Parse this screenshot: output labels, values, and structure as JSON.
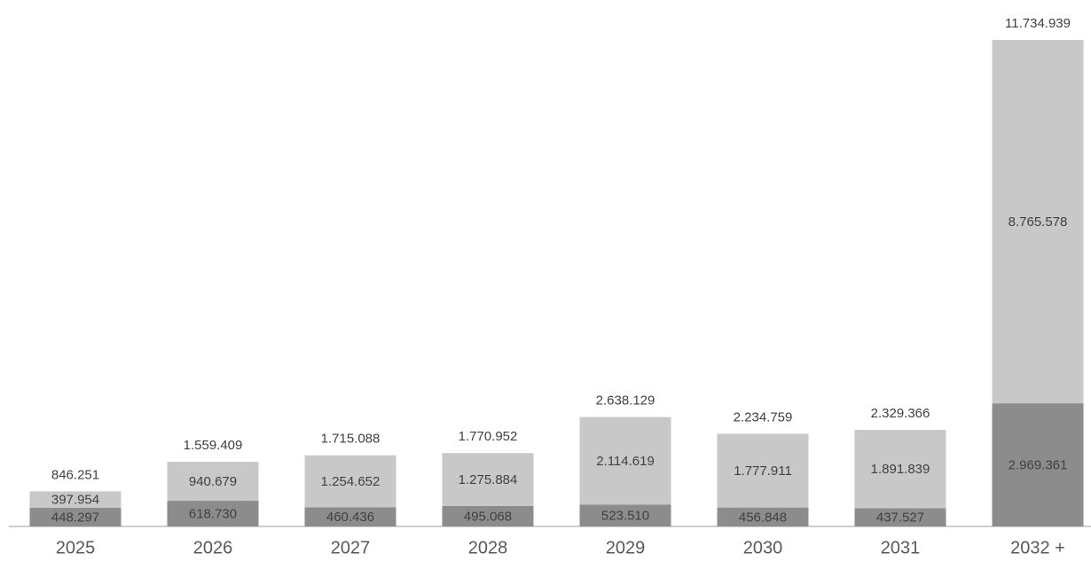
{
  "chart_data": {
    "type": "stacked-bar",
    "categories": [
      "2025",
      "2026",
      "2027",
      "2028",
      "2029",
      "2030",
      "2031",
      "2032 +"
    ],
    "series": [
      {
        "color": "#8c8c8c",
        "values": [
          448297,
          618730,
          460436,
          495068,
          523510,
          456848,
          437527,
          2969361
        ],
        "value_labels": [
          "448.297",
          "618.730",
          "460.436",
          "495.068",
          "523.510",
          "456.848",
          "437.527",
          "2.969.361"
        ]
      },
      {
        "color": "#c8c8c8",
        "values": [
          397954,
          940679,
          1254652,
          1275884,
          2114619,
          1777911,
          1891839,
          8765578
        ],
        "value_labels": [
          "397.954",
          "940.679",
          "1.254.652",
          "1.275.884",
          "2.114.619",
          "1.777.911",
          "1.891.839",
          "8.765.578"
        ]
      }
    ],
    "totals": {
      "values": [
        846251,
        1559409,
        1715088,
        1770952,
        2638129,
        2234759,
        2329366,
        11734939
      ],
      "value_labels": [
        "846.251",
        "1.559.409",
        "1.715.088",
        "1.770.952",
        "2.638.129",
        "2.234.759",
        "2.329.366",
        "11.734.939"
      ]
    },
    "ylim": [
      0,
      11734939
    ]
  }
}
